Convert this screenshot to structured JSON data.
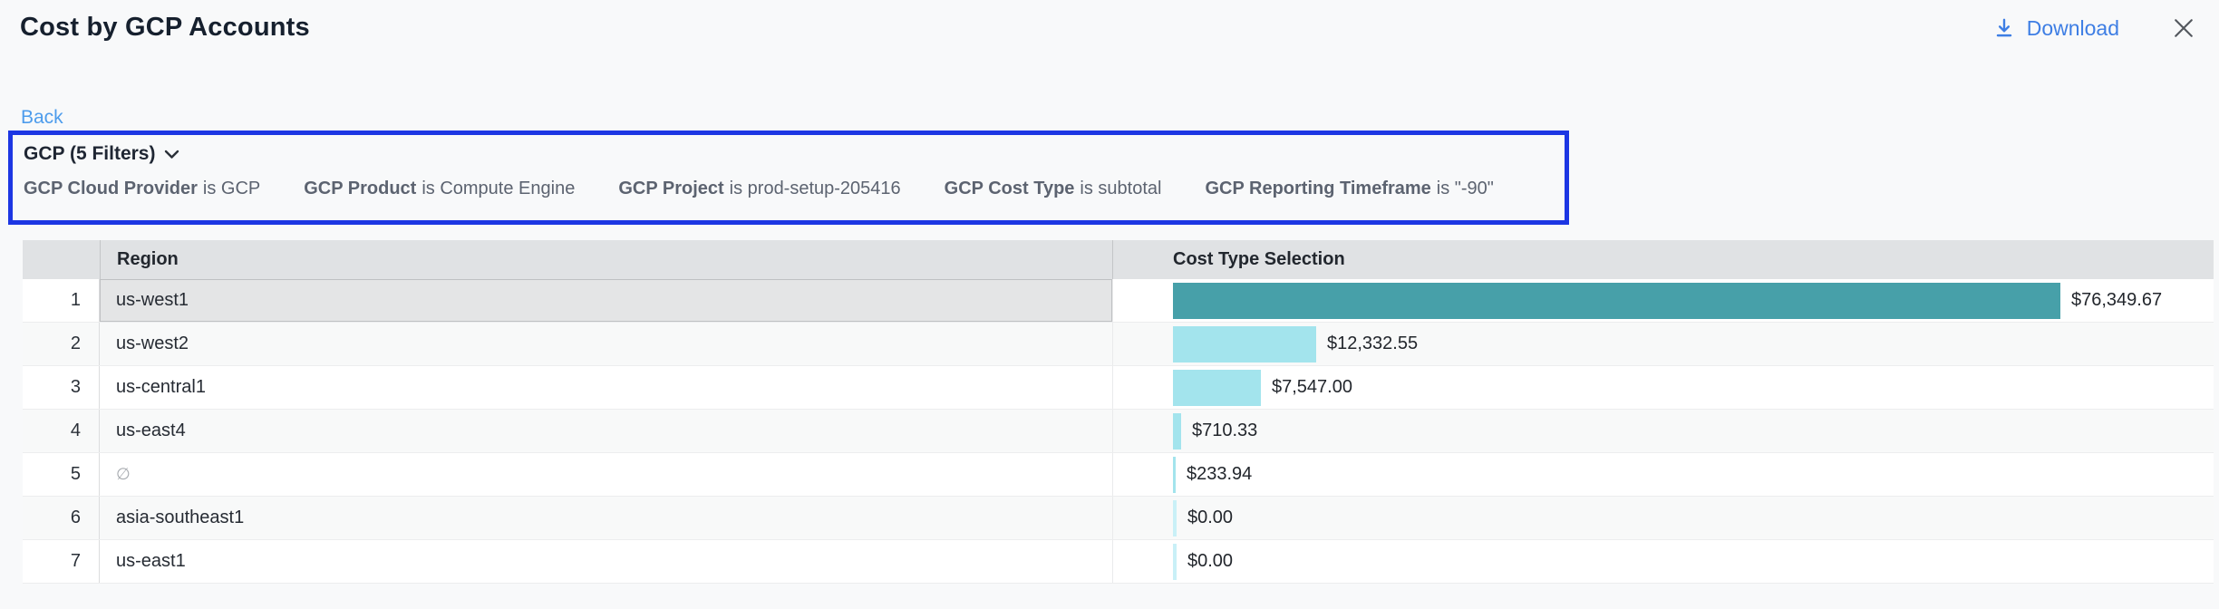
{
  "title": "Cost by GCP Accounts",
  "actions": {
    "download_label": "Download"
  },
  "back_label": "Back",
  "filter_panel": {
    "summary_label": "GCP (5 Filters)",
    "filters": [
      {
        "label": "GCP Cloud Provider",
        "condition": "is GCP"
      },
      {
        "label": "GCP Product",
        "condition": "is Compute Engine"
      },
      {
        "label": "GCP Project",
        "condition": "is prod-setup-205416"
      },
      {
        "label": "GCP Cost Type",
        "condition": "is subtotal"
      },
      {
        "label": "GCP Reporting Timeframe",
        "condition": "is \"-90\""
      }
    ]
  },
  "table": {
    "columns": [
      "Region",
      "Cost Type Selection"
    ],
    "rows": [
      {
        "index": "1",
        "region": "us-west1",
        "amount": 76349.67,
        "display": "$76,349.67",
        "selected": true
      },
      {
        "index": "2",
        "region": "us-west2",
        "amount": 12332.55,
        "display": "$12,332.55"
      },
      {
        "index": "3",
        "region": "us-central1",
        "amount": 7547.0,
        "display": "$7,547.00"
      },
      {
        "index": "4",
        "region": "us-east4",
        "amount": 710.33,
        "display": "$710.33"
      },
      {
        "index": "5",
        "region": "∅",
        "amount": 233.94,
        "display": "$233.94",
        "muted": true
      },
      {
        "index": "6",
        "region": "asia-southeast1",
        "amount": 0,
        "display": "$0.00"
      },
      {
        "index": "7",
        "region": "us-east1",
        "amount": 0,
        "display": "$0.00"
      }
    ]
  },
  "colors": {
    "bar_selected": "#47A0A9",
    "bar_normal": "#A3E4ED",
    "bar_zero": "#C9F0F7",
    "download_blue": "#3E7EE4",
    "back_blue": "#4D9CEC",
    "annotation_blue": "#1C36E3",
    "close_gray": "#54585E"
  }
}
